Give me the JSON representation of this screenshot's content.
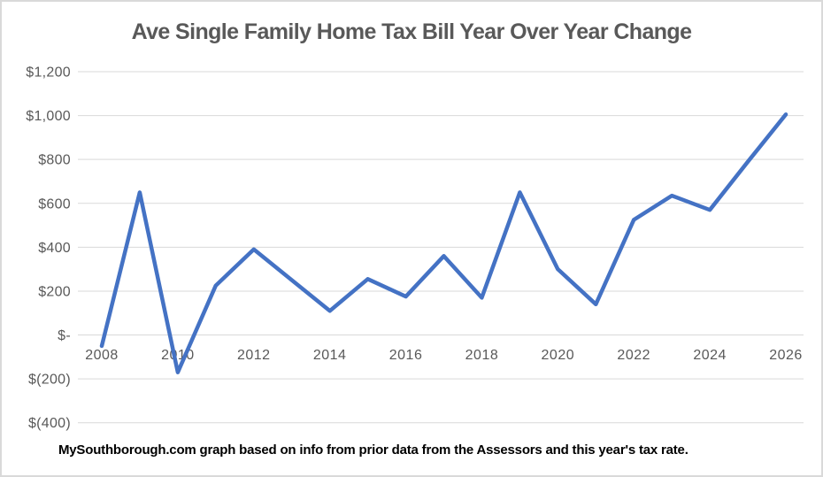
{
  "title": "Ave Single Family Home Tax Bill Year Over Year Change",
  "caption": "MySouthborough.com graph based on info from prior data from the Assessors and this year's tax rate.",
  "chart_data": {
    "type": "line",
    "title": "Ave Single Family Home Tax Bill Year Over Year Change",
    "xlabel": "",
    "ylabel": "",
    "x": [
      2008,
      2009,
      2010,
      2011,
      2012,
      2013,
      2014,
      2015,
      2016,
      2017,
      2018,
      2019,
      2020,
      2021,
      2022,
      2023,
      2024,
      2025,
      2026
    ],
    "values": [
      -50,
      650,
      -170,
      225,
      390,
      250,
      110,
      255,
      175,
      360,
      170,
      650,
      300,
      140,
      525,
      635,
      570,
      790,
      1005
    ],
    "ylim": [
      -400,
      1200
    ],
    "ytick_step": 200,
    "ytick_labels": [
      "$1,200",
      "$1,000",
      "$800",
      "$600",
      "$400",
      "$200",
      "$-",
      "$(200)",
      "$(400)"
    ],
    "xtick_years": [
      2008,
      2010,
      2012,
      2014,
      2016,
      2018,
      2020,
      2022,
      2024,
      2026
    ],
    "grid": true,
    "legend": "none",
    "colors": {
      "line": "#4472C4",
      "gridline": "#D9D9D9",
      "axis_text": "#595959",
      "title_text": "#595959",
      "caption_text": "#000000",
      "frame_border": "#D9D9D9",
      "background": "#FFFFFF"
    }
  }
}
